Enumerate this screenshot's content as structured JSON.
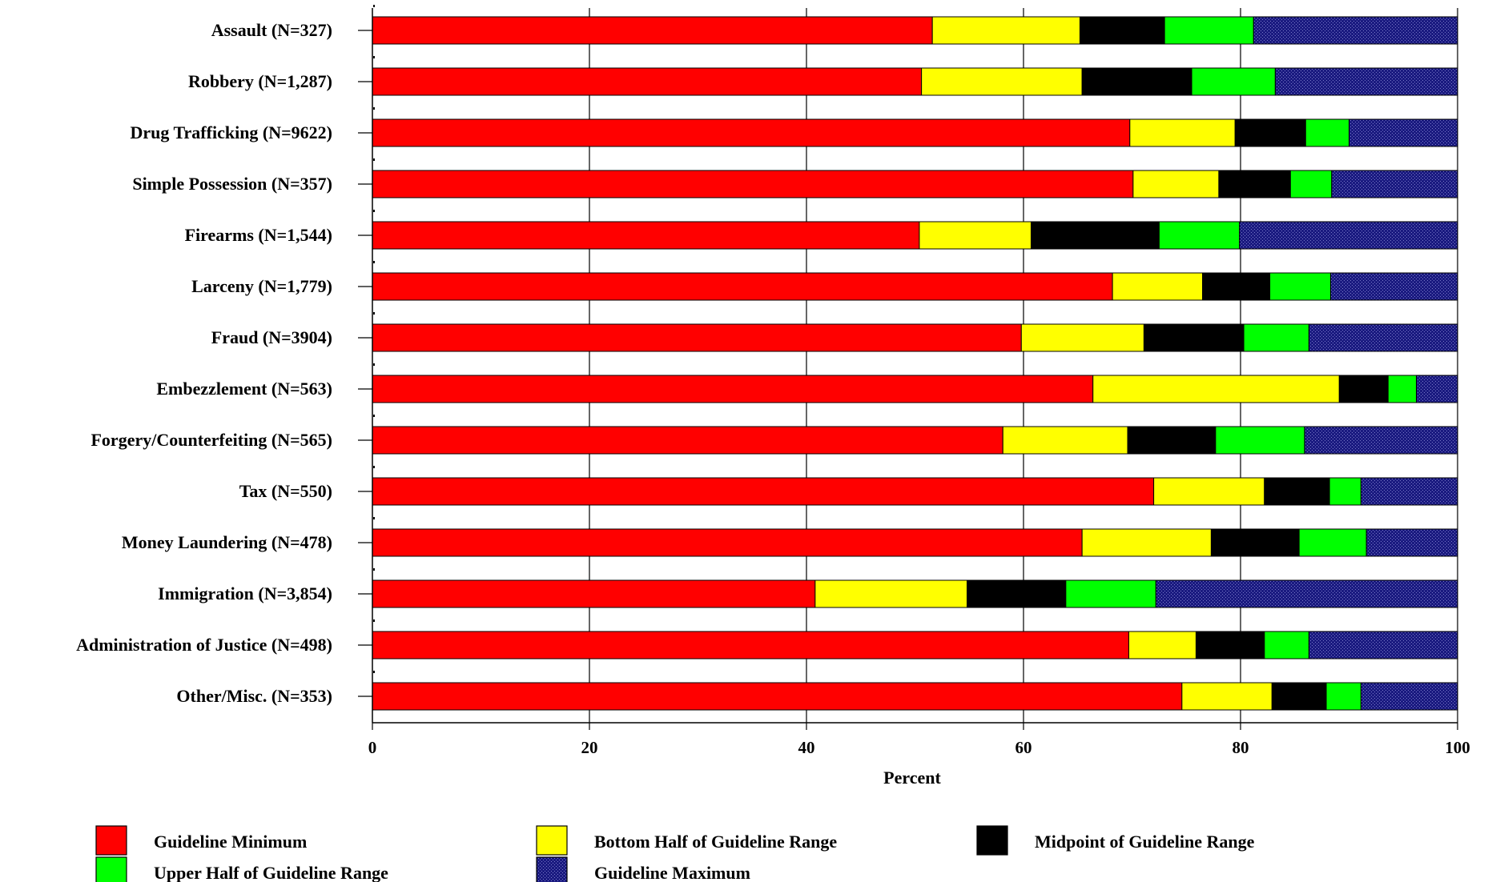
{
  "chart_data": {
    "type": "bar",
    "orientation": "horizontal",
    "stacked": true,
    "xlabel": "Percent",
    "xlim": [
      0,
      100
    ],
    "xticks": [
      "0",
      "20",
      "40",
      "60",
      "80",
      "100"
    ],
    "grid": true,
    "legend_position": "bottom",
    "categories": [
      "Assault (N=327)",
      "Robbery (N=1,287)",
      "Drug Trafficking (N=9622)",
      "Simple Possession (N=357)",
      "Firearms (N=1,544)",
      "Larceny (N=1,779)",
      "Fraud (N=3904)",
      "Embezzlement (N=563)",
      "Forgery/Counterfeiting (N=565)",
      "Tax (N=550)",
      "Money Laundering (N=478)",
      "Immigration (N=3,854)",
      "Administration of Justice (N=498)",
      "Other/Misc. (N=353)"
    ],
    "series": [
      {
        "name": "Guideline Minimum",
        "color": "#ff0000",
        "pattern": "solid",
        "values": [
          51.6,
          50.6,
          69.8,
          70.1,
          50.4,
          68.2,
          59.8,
          66.4,
          58.1,
          72.0,
          65.4,
          40.8,
          69.7,
          74.6
        ]
      },
      {
        "name": "Bottom Half of Guideline Range",
        "color": "#ffff00",
        "pattern": "solid",
        "values": [
          13.6,
          14.8,
          9.7,
          7.9,
          10.3,
          8.3,
          11.3,
          22.7,
          11.5,
          10.2,
          11.9,
          14.0,
          6.2,
          8.3
        ]
      },
      {
        "name": "Midpoint of Guideline Range",
        "color": "#000000",
        "pattern": "solid",
        "values": [
          7.8,
          10.1,
          6.5,
          6.6,
          11.8,
          6.2,
          9.2,
          4.5,
          8.1,
          6.0,
          8.1,
          9.1,
          6.3,
          5.0
        ]
      },
      {
        "name": "Upper Half of Guideline Range",
        "color": "#00ff00",
        "pattern": "solid",
        "values": [
          8.2,
          7.7,
          4.0,
          3.8,
          7.4,
          5.6,
          6.0,
          2.6,
          8.2,
          2.9,
          6.2,
          8.3,
          4.1,
          3.2
        ]
      },
      {
        "name": "Guideline Maximum",
        "color": "#1a1a80",
        "pattern": "dotted",
        "values": [
          18.8,
          16.8,
          10.0,
          11.6,
          20.1,
          11.7,
          13.7,
          3.8,
          14.1,
          8.9,
          8.4,
          27.8,
          13.7,
          8.9
        ]
      }
    ]
  }
}
